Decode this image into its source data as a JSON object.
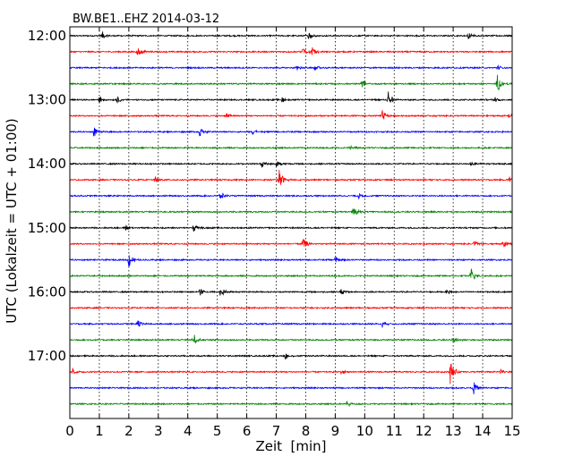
{
  "chart_data": {
    "type": "line",
    "title": "BW.BE1..EHZ 2014-03-12",
    "xlabel": "Zeit  [min]",
    "ylabel": "UTC (Lokalzeit = UTC + 01:00)",
    "xlim": [
      0,
      15
    ],
    "x_ticks": [
      0,
      1,
      2,
      3,
      4,
      5,
      6,
      7,
      8,
      9,
      10,
      11,
      12,
      13,
      14,
      15
    ],
    "x_tick_labels": [
      "0",
      "1",
      "2",
      "3",
      "4",
      "5",
      "6",
      "7",
      "8",
      "9",
      "10",
      "11",
      "12",
      "13",
      "14",
      "15"
    ],
    "y_tick_labels": [
      "12:00",
      "13:00",
      "14:00",
      "15:00",
      "16:00",
      "17:00"
    ],
    "grid": "vertical dotted",
    "trace_colors": [
      "#000000",
      "#ff0000",
      "#0000ff",
      "#008000"
    ],
    "series": [
      {
        "start": "12:00",
        "events": [
          {
            "x": 1.1,
            "amp": 0.4
          },
          {
            "x": 8.1,
            "amp": 0.45
          },
          {
            "x": 13.5,
            "amp": 0.35
          }
        ]
      },
      {
        "start": "12:15",
        "events": [
          {
            "x": 2.3,
            "amp": 0.6
          },
          {
            "x": 7.9,
            "amp": 0.4
          },
          {
            "x": 8.2,
            "amp": 0.5
          }
        ]
      },
      {
        "start": "12:30",
        "events": [
          {
            "x": 7.7,
            "amp": 0.35
          },
          {
            "x": 8.3,
            "amp": 0.35
          },
          {
            "x": 14.5,
            "amp": 0.3
          }
        ]
      },
      {
        "start": "12:45",
        "events": [
          {
            "x": 9.9,
            "amp": 0.45
          },
          {
            "x": 14.5,
            "amp": 0.9
          }
        ]
      },
      {
        "start": "13:00",
        "events": [
          {
            "x": 1.0,
            "amp": 0.4
          },
          {
            "x": 1.6,
            "amp": 0.35
          },
          {
            "x": 7.2,
            "amp": 0.35
          },
          {
            "x": 10.8,
            "amp": 0.9
          },
          {
            "x": 14.4,
            "amp": 0.3
          }
        ]
      },
      {
        "start": "13:15",
        "events": [
          {
            "x": 5.3,
            "amp": 0.3
          },
          {
            "x": 10.6,
            "amp": 0.55
          },
          {
            "x": 14.9,
            "amp": 0.4
          }
        ]
      },
      {
        "start": "13:30",
        "events": [
          {
            "x": 0.8,
            "amp": 0.55
          },
          {
            "x": 4.4,
            "amp": 0.45
          },
          {
            "x": 6.2,
            "amp": 0.3
          }
        ]
      },
      {
        "start": "13:45",
        "events": [
          {
            "x": 9.5,
            "amp": 0.3
          }
        ]
      },
      {
        "start": "14:00",
        "events": [
          {
            "x": 6.5,
            "amp": 0.35
          },
          {
            "x": 7.0,
            "amp": 0.45
          },
          {
            "x": 13.6,
            "amp": 0.3
          }
        ]
      },
      {
        "start": "14:15",
        "events": [
          {
            "x": 2.9,
            "amp": 0.4
          },
          {
            "x": 7.1,
            "amp": 1.0
          },
          {
            "x": 14.9,
            "amp": 0.4
          }
        ]
      },
      {
        "start": "14:30",
        "events": [
          {
            "x": 5.1,
            "amp": 0.4
          },
          {
            "x": 9.8,
            "amp": 0.3
          }
        ]
      },
      {
        "start": "14:45",
        "events": [
          {
            "x": 9.6,
            "amp": 0.75
          }
        ]
      },
      {
        "start": "15:00",
        "events": [
          {
            "x": 1.9,
            "amp": 0.35
          },
          {
            "x": 4.2,
            "amp": 0.55
          }
        ]
      },
      {
        "start": "15:15",
        "events": [
          {
            "x": 7.9,
            "amp": 0.6
          },
          {
            "x": 13.7,
            "amp": 0.35
          },
          {
            "x": 14.7,
            "amp": 0.45
          }
        ]
      },
      {
        "start": "15:30",
        "events": [
          {
            "x": 2.0,
            "amp": 0.75
          },
          {
            "x": 9.0,
            "amp": 0.35
          }
        ]
      },
      {
        "start": "15:45",
        "events": [
          {
            "x": 13.6,
            "amp": 0.9
          }
        ]
      },
      {
        "start": "16:00",
        "events": [
          {
            "x": 4.4,
            "amp": 0.45
          },
          {
            "x": 5.1,
            "amp": 0.55
          },
          {
            "x": 9.2,
            "amp": 0.3
          },
          {
            "x": 12.8,
            "amp": 0.3
          }
        ]
      },
      {
        "start": "16:15",
        "events": []
      },
      {
        "start": "16:30",
        "events": [
          {
            "x": 2.3,
            "amp": 0.5
          },
          {
            "x": 10.6,
            "amp": 0.3
          }
        ]
      },
      {
        "start": "16:45",
        "events": [
          {
            "x": 4.2,
            "amp": 0.6
          },
          {
            "x": 13.0,
            "amp": 0.45
          }
        ]
      },
      {
        "start": "17:00",
        "events": [
          {
            "x": 7.3,
            "amp": 0.35
          }
        ]
      },
      {
        "start": "17:15",
        "events": [
          {
            "x": 0.1,
            "amp": 0.35
          },
          {
            "x": 9.2,
            "amp": 0.3
          },
          {
            "x": 12.9,
            "amp": 1.2
          },
          {
            "x": 14.6,
            "amp": 0.3
          }
        ]
      },
      {
        "start": "17:30",
        "events": [
          {
            "x": 13.7,
            "amp": 0.6
          }
        ]
      },
      {
        "start": "17:45",
        "events": [
          {
            "x": 9.4,
            "amp": 0.3
          }
        ]
      }
    ]
  }
}
